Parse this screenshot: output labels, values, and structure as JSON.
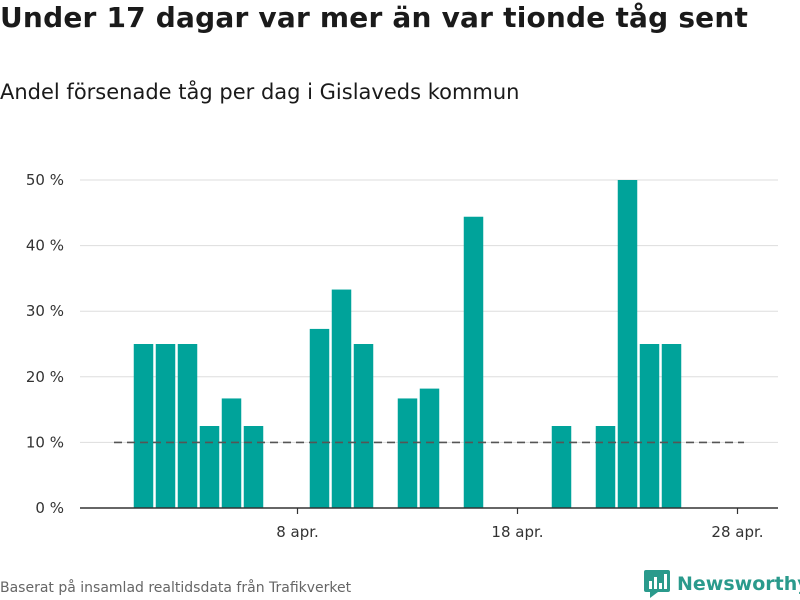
{
  "title": "Under 17 dagar var mer än var tionde tåg sent",
  "subtitle": "Andel försenade tåg per dag i Gislaveds kommun",
  "source": "Baserat på insamlad realtidsdata från Trafikverket",
  "logo": {
    "text": "Newsworthy",
    "icon": "bar-chart-logo-icon"
  },
  "colors": {
    "bar": "#00a39a",
    "reference_line": "#555555",
    "grid": "#dddddd",
    "axis": "#333333",
    "brand": "#2a9a8c"
  },
  "chart_data": {
    "type": "bar",
    "x": [
      "1 apr.",
      "2 apr.",
      "3 apr.",
      "4 apr.",
      "5 apr.",
      "6 apr.",
      "7 apr.",
      "8 apr.",
      "9 apr.",
      "10 apr.",
      "11 apr.",
      "12 apr.",
      "13 apr.",
      "14 apr.",
      "15 apr.",
      "16 apr.",
      "17 apr.",
      "18 apr.",
      "19 apr.",
      "20 apr.",
      "21 apr.",
      "22 apr.",
      "23 apr.",
      "24 apr.",
      "25 apr.",
      "26 apr.",
      "27 apr.",
      "28 apr.",
      "29 apr.",
      "30 apr."
    ],
    "values": [
      25,
      25,
      25,
      12.5,
      16.7,
      12.5,
      0,
      0,
      27.3,
      33.3,
      25,
      0,
      16.7,
      18.2,
      0,
      44.4,
      0,
      0,
      0,
      12.5,
      0,
      12.5,
      50,
      25,
      25,
      0,
      0,
      0,
      0,
      0
    ],
    "x_ticks": [
      "8 apr.",
      "18 apr.",
      "28 apr."
    ],
    "y_ticks": [
      0,
      10,
      20,
      30,
      40,
      50
    ],
    "y_tick_labels": [
      "0 %",
      "10 %",
      "20 %",
      "30 %",
      "40 %",
      "50 %"
    ],
    "ylim": [
      0,
      50
    ],
    "reference_line": 10,
    "grid": true,
    "xlabel": "",
    "ylabel": ""
  }
}
